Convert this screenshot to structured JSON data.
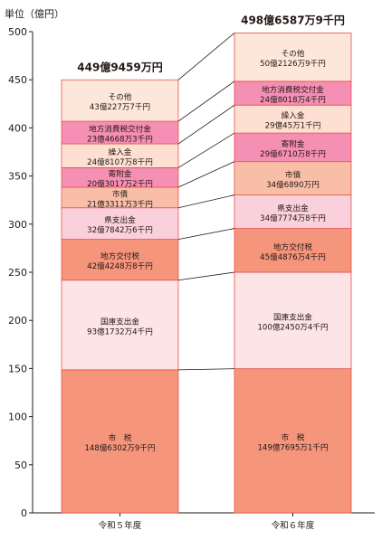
{
  "chart_data": {
    "type": "bar",
    "stacked": true,
    "ylabel": "単位（億円）",
    "ylim": [
      0,
      500
    ],
    "yticks": [
      "0",
      "50",
      "100",
      "150",
      "200",
      "250",
      "300",
      "350",
      "400",
      "450",
      "500"
    ],
    "categories": [
      "令和５年度",
      "令和６年度"
    ],
    "totals": [
      "449億9459万円",
      "498億6587万9千円"
    ],
    "series": [
      {
        "name": "市　税",
        "color": "#f5957c",
        "values": [
          148.63,
          149.77
        ],
        "labels": [
          "148億6302万9千円",
          "149億7695万1千円"
        ]
      },
      {
        "name": "国庫支出金",
        "color": "#fde4e6",
        "values": [
          93.17,
          100.25
        ],
        "labels": [
          "93億1732万4千円",
          "100億2450万4千円"
        ]
      },
      {
        "name": "地方交付税",
        "color": "#f5957c",
        "values": [
          42.42,
          45.49
        ],
        "labels": [
          "42億4248万8千円",
          "45億4876万4千円"
        ]
      },
      {
        "name": "県支出金",
        "color": "#fad0dc",
        "values": [
          32.78,
          34.78
        ],
        "labels": [
          "32億7842万6千円",
          "34億7774万8千円"
        ]
      },
      {
        "name": "市債",
        "color": "#f9bea8",
        "values": [
          21.33,
          34.69
        ],
        "labels": [
          "21億3311万3千円",
          "34億6890万円"
        ]
      },
      {
        "name": "寄附金",
        "color": "#f58fb3",
        "values": [
          20.3,
          29.67
        ],
        "labels": [
          "20億3017万2千円",
          "29億6710万8千円"
        ]
      },
      {
        "name": "繰入金",
        "color": "#fde0d2",
        "values": [
          24.81,
          29.0
        ],
        "labels": [
          "24億8107万8千円",
          "29億45万1千円"
        ]
      },
      {
        "name": "地方消費税交付金",
        "color": "#f58fb3",
        "values": [
          23.47,
          24.8
        ],
        "labels": [
          "23億4668万3千円",
          "24億8018万4千円"
        ]
      },
      {
        "name": "その他",
        "color": "#fde7db",
        "values": [
          43.02,
          50.21
        ],
        "labels": [
          "43億227万7千円",
          "50億2126万9千円"
        ]
      }
    ]
  }
}
